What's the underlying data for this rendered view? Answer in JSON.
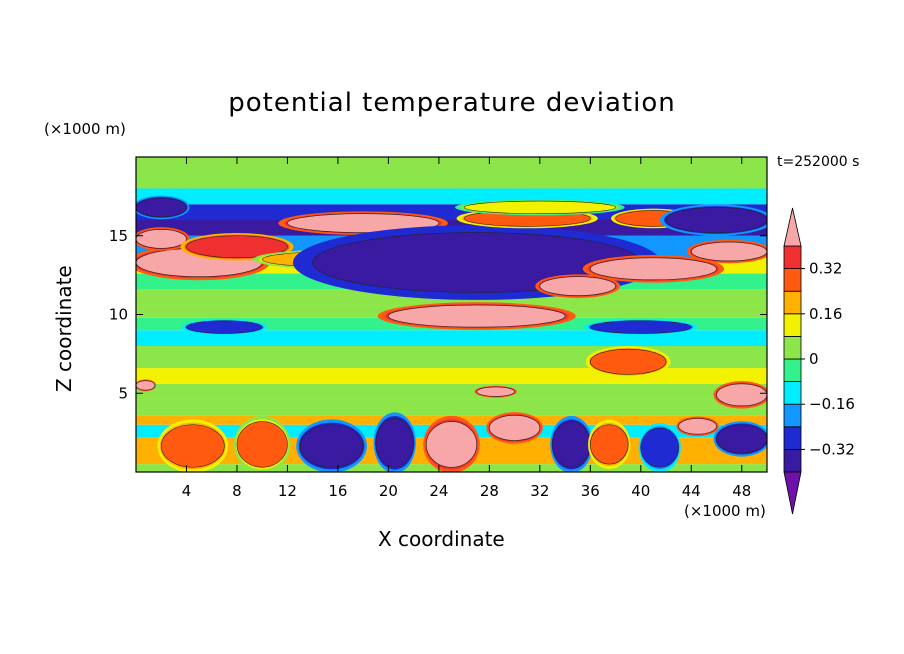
{
  "chart_data": {
    "type": "heatmap",
    "title": "potential temperature deviation",
    "xlabel": "X coordinate",
    "ylabel": "Z coordinate",
    "x_unit": "(×1000 m)",
    "y_unit": "(×1000 m)",
    "time_label": "t=252000 s",
    "xlim": [
      0,
      50
    ],
    "ylim": [
      0,
      20
    ],
    "x_ticks": [
      4,
      8,
      12,
      16,
      20,
      24,
      28,
      32,
      36,
      40,
      44,
      48
    ],
    "y_ticks": [
      5,
      10,
      15
    ],
    "colorbar": {
      "levels": [
        -0.4,
        -0.32,
        -0.24,
        -0.16,
        -0.08,
        0,
        0.08,
        0.16,
        0.24,
        0.32,
        0.4
      ],
      "tick_labels": [
        "0.32",
        "0.16",
        "0",
        "−0.16",
        "−0.32"
      ],
      "tick_values": [
        0.32,
        0.16,
        0,
        -0.16,
        -0.32
      ],
      "colors": [
        "#6f10a8",
        "#3a1aa0",
        "#1f2ad2",
        "#1296ff",
        "#00ecff",
        "#33f28c",
        "#8ce64a",
        "#f2f200",
        "#ffb000",
        "#ff5a10",
        "#f03030",
        "#f7a7a7"
      ]
    },
    "bands": [
      {
        "z": [
          0.0,
          0.5
        ],
        "value": 0.06
      },
      {
        "z": [
          0.5,
          2.2
        ],
        "value": 0.18
      },
      {
        "z": [
          2.2,
          3.0
        ],
        "value": -0.1
      },
      {
        "z": [
          3.0,
          3.6
        ],
        "value": 0.2
      },
      {
        "z": [
          3.6,
          4.6
        ],
        "value": 0.0
      },
      {
        "z": [
          4.6,
          5.6
        ],
        "value": 0.04
      },
      {
        "z": [
          5.6,
          6.6
        ],
        "value": 0.08
      },
      {
        "z": [
          6.6,
          8.0
        ],
        "value": 0.04
      },
      {
        "z": [
          8.0,
          9.0
        ],
        "value": -0.1
      },
      {
        "z": [
          9.0,
          9.8
        ],
        "value": -0.06
      },
      {
        "z": [
          9.8,
          10.6
        ],
        "value": 0.02
      },
      {
        "z": [
          10.6,
          11.6
        ],
        "value": 0.06
      },
      {
        "z": [
          11.6,
          12.6
        ],
        "value": -0.04
      },
      {
        "z": [
          12.6,
          13.6
        ],
        "value": 0.12
      },
      {
        "z": [
          13.6,
          15.0
        ],
        "value": -0.2
      },
      {
        "z": [
          15.0,
          16.0
        ],
        "value": -0.36
      },
      {
        "z": [
          16.0,
          17.0
        ],
        "value": -0.28
      },
      {
        "z": [
          17.0,
          18.0
        ],
        "value": -0.1
      },
      {
        "z": [
          18.0,
          20.0
        ],
        "value": 0.02
      }
    ],
    "features": [
      {
        "x": [
          0,
          10
        ],
        "z": [
          12.4,
          14.2
        ],
        "value": 0.4
      },
      {
        "x": [
          0,
          4
        ],
        "z": [
          14.2,
          15.4
        ],
        "value": 0.4
      },
      {
        "x": [
          4,
          12
        ],
        "z": [
          13.6,
          15.0
        ],
        "value": 0.36
      },
      {
        "x": [
          12,
          24
        ],
        "z": [
          15.2,
          16.4
        ],
        "value": 0.4
      },
      {
        "x": [
          10,
          22
        ],
        "z": [
          13.0,
          14.0
        ],
        "value": 0.2
      },
      {
        "x": [
          14,
          40
        ],
        "z": [
          11.4,
          15.2
        ],
        "value": -0.4
      },
      {
        "x": [
          20,
          34
        ],
        "z": [
          9.2,
          10.6
        ],
        "value": 0.4
      },
      {
        "x": [
          26,
          36
        ],
        "z": [
          15.6,
          16.6
        ],
        "value": 0.3
      },
      {
        "x": [
          38,
          44
        ],
        "z": [
          15.6,
          16.6
        ],
        "value": 0.3
      },
      {
        "x": [
          26,
          38
        ],
        "z": [
          16.4,
          17.2
        ],
        "value": 0.12
      },
      {
        "x": [
          44,
          50
        ],
        "z": [
          13.4,
          14.6
        ],
        "value": 0.4
      },
      {
        "x": [
          36,
          46
        ],
        "z": [
          12.2,
          13.6
        ],
        "value": 0.4
      },
      {
        "x": [
          32,
          38
        ],
        "z": [
          11.2,
          12.4
        ],
        "value": 0.4
      },
      {
        "x": [
          0,
          4
        ],
        "z": [
          16.2,
          17.4
        ],
        "value": -0.36
      },
      {
        "x": [
          42,
          50
        ],
        "z": [
          15.2,
          16.8
        ],
        "value": -0.36
      },
      {
        "x": [
          4,
          10
        ],
        "z": [
          8.8,
          9.6
        ],
        "value": -0.28
      },
      {
        "x": [
          36,
          44
        ],
        "z": [
          8.8,
          9.6
        ],
        "value": -0.28
      },
      {
        "x": [
          37,
          40
        ],
        "z": [
          6.4,
          7.6
        ],
        "value": 0.4
      },
      {
        "x": [
          36,
          42
        ],
        "z": [
          6.2,
          7.8
        ],
        "value": 0.3
      },
      {
        "x": [
          2,
          7
        ],
        "z": [
          0.3,
          3.0
        ],
        "value": 0.3
      },
      {
        "x": [
          8,
          12
        ],
        "z": [
          0.3,
          3.2
        ],
        "value": 0.24
      },
      {
        "x": [
          13,
          18
        ],
        "z": [
          0.3,
          3.0
        ],
        "value": -0.36
      },
      {
        "x": [
          19,
          22
        ],
        "z": [
          0.3,
          3.4
        ],
        "value": -0.36
      },
      {
        "x": [
          23,
          27
        ],
        "z": [
          0.3,
          3.2
        ],
        "value": 0.4
      },
      {
        "x": [
          28,
          32
        ],
        "z": [
          2.0,
          3.6
        ],
        "value": 0.4
      },
      {
        "x": [
          33,
          36
        ],
        "z": [
          0.3,
          3.2
        ],
        "value": -0.36
      },
      {
        "x": [
          36,
          39
        ],
        "z": [
          0.5,
          3.0
        ],
        "value": 0.3
      },
      {
        "x": [
          40,
          43
        ],
        "z": [
          0.3,
          2.8
        ],
        "value": -0.28
      },
      {
        "x": [
          43,
          46
        ],
        "z": [
          2.4,
          3.4
        ],
        "value": 0.4
      },
      {
        "x": [
          46,
          50
        ],
        "z": [
          1.2,
          3.0
        ],
        "value": -0.36
      },
      {
        "x": [
          46,
          50
        ],
        "z": [
          4.2,
          5.6
        ],
        "value": 0.4
      },
      {
        "x": [
          0,
          1.5
        ],
        "z": [
          5.2,
          5.8
        ],
        "value": 0.4
      },
      {
        "x": [
          27,
          30
        ],
        "z": [
          4.8,
          5.4
        ],
        "value": 0.4
      }
    ]
  }
}
